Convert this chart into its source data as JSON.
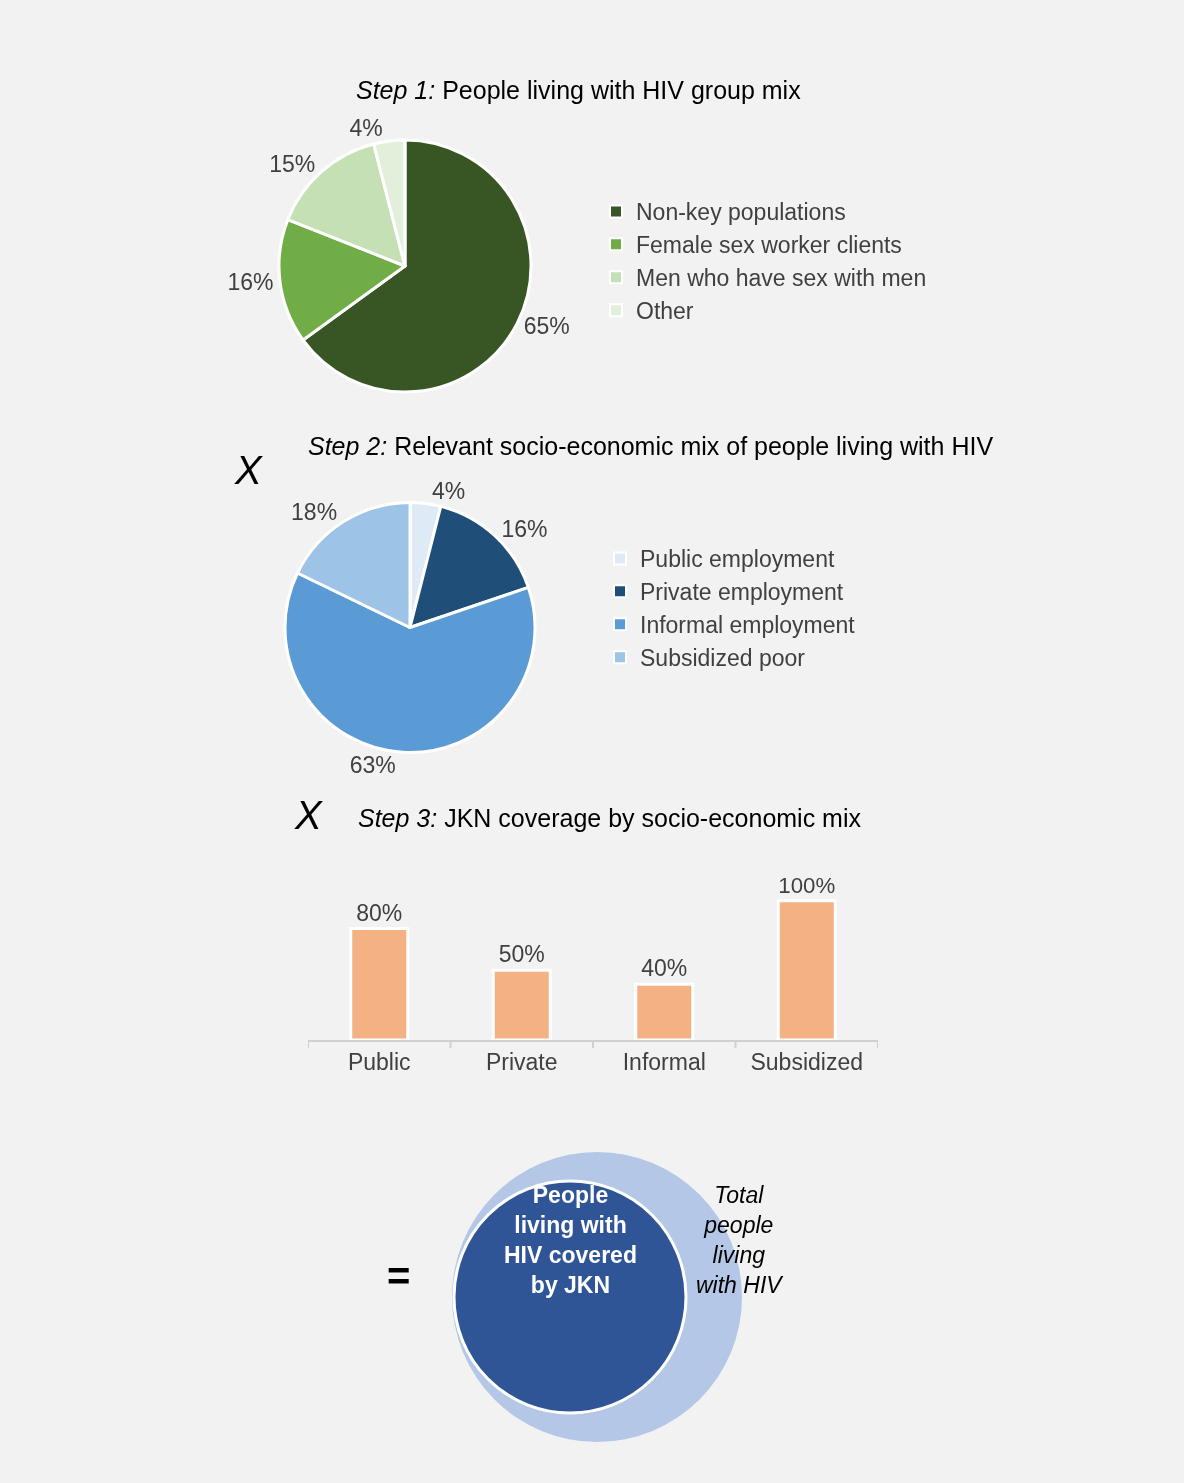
{
  "chart_data": [
    {
      "type": "pie",
      "title": "Step 1: People living with HIV group mix",
      "categories": [
        "Non-key populations",
        "Female sex worker clients",
        "Men who have sex with men",
        "Other"
      ],
      "values": [
        65,
        16,
        15,
        4
      ],
      "value_labels": [
        "65%",
        "16%",
        "15%",
        "4%"
      ],
      "colors": [
        "#375623",
        "#70ad47",
        "#c5e0b4",
        "#e2efda"
      ],
      "legend": "right"
    },
    {
      "type": "pie",
      "title": "Step 2: Relevant socio-economic mix of people living with HIV",
      "annotations": [
        "X"
      ],
      "categories": [
        "Public employment",
        "Private employment",
        "Informal employment",
        "Subsidized poor"
      ],
      "values": [
        4,
        16,
        63,
        18
      ],
      "value_labels": [
        "4%",
        "16%",
        "63%",
        "18%"
      ],
      "colors": [
        "#deebf7",
        "#1f4e79",
        "#5b9bd5",
        "#9dc3e6"
      ],
      "legend": "right"
    },
    {
      "type": "bar",
      "title": "Step 3: JKN coverage by socio-economic mix",
      "annotations": [
        "X"
      ],
      "categories": [
        "Public",
        "Private",
        "Informal",
        "Subsidized"
      ],
      "values": [
        80,
        50,
        40,
        100
      ],
      "value_labels": [
        "80%",
        "50%",
        "40%",
        "100%"
      ],
      "color": "#f4b183",
      "tick_labels": "x"
    },
    {
      "type": "other",
      "annotations": [
        "=",
        "People living with HIV covered by JKN",
        "Total people living with HIV"
      ]
    }
  ]
}
